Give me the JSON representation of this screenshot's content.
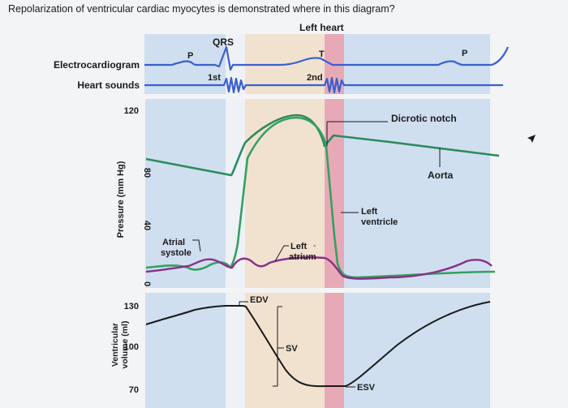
{
  "question": "Repolarization of ventricular cardiac myocytes is demonstrated where in this diagram?",
  "header": {
    "left_heart": "Left heart"
  },
  "rows": {
    "ecg": "Electrocardiogram",
    "heart_sounds": "Heart sounds"
  },
  "ecg_labels": {
    "p_first": "P",
    "qrs": "QRS",
    "t": "T",
    "p_second": "P"
  },
  "sound_labels": {
    "first": "1st",
    "second": "2nd"
  },
  "pressure_axis": {
    "label": "Pressure (mm Hg)",
    "ticks": [
      "120",
      "80",
      "40",
      "0"
    ]
  },
  "volume_axis": {
    "label_line1": "Ventricular",
    "label_line2": "volume (ml)",
    "ticks": [
      "130",
      "100",
      "70"
    ]
  },
  "annotations": {
    "dicrotic_notch": "Dicrotic notch",
    "aorta": "Aorta",
    "left_ventricle_1": "Left",
    "left_ventricle_2": "ventricle",
    "left_atrium_1": "Left",
    "left_atrium_2": "atrium",
    "atrial_systole_1": "Atrial",
    "atrial_systole_2": "systole",
    "edv": "EDV",
    "sv": "SV",
    "esv": "ESV"
  },
  "colors": {
    "diastole_band": "#cfdff0",
    "systole_band": "#f1e2cf",
    "isovolumetric_contraction_band": "#eef1f6",
    "isovolumetric_relaxation_band": "#e8a9b6",
    "ecg_line": "#3a5fd0",
    "aorta_line": "#2e8a5e",
    "ventricle_line": "#35a060",
    "atrium_line": "#8a2f86",
    "volume_line": "#1a1a1a"
  }
}
